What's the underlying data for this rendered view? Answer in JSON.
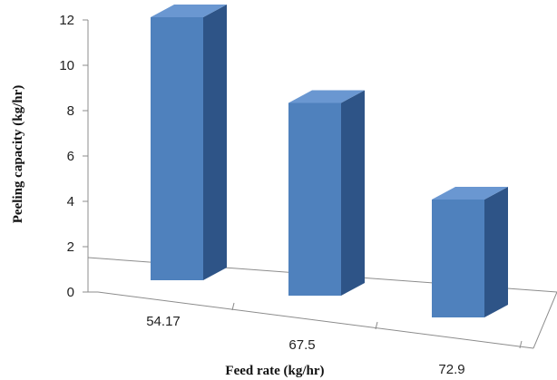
{
  "chart_data": {
    "type": "bar",
    "title": "",
    "xlabel": "Feed rate (kg/hr)",
    "ylabel": "Peeling capacity (kg/hr)",
    "categories": [
      "54.17",
      "67.5",
      "72.9"
    ],
    "values": [
      11.6,
      8.5,
      5.2
    ],
    "ylim": [
      0,
      12
    ],
    "yticks": [
      "0",
      "2",
      "4",
      "6",
      "8",
      "10",
      "12"
    ],
    "grid": false,
    "legend": "none",
    "bar_colors": {
      "front": "#4f81bd",
      "side": "#2e5487",
      "top": "#6a97d1"
    }
  }
}
